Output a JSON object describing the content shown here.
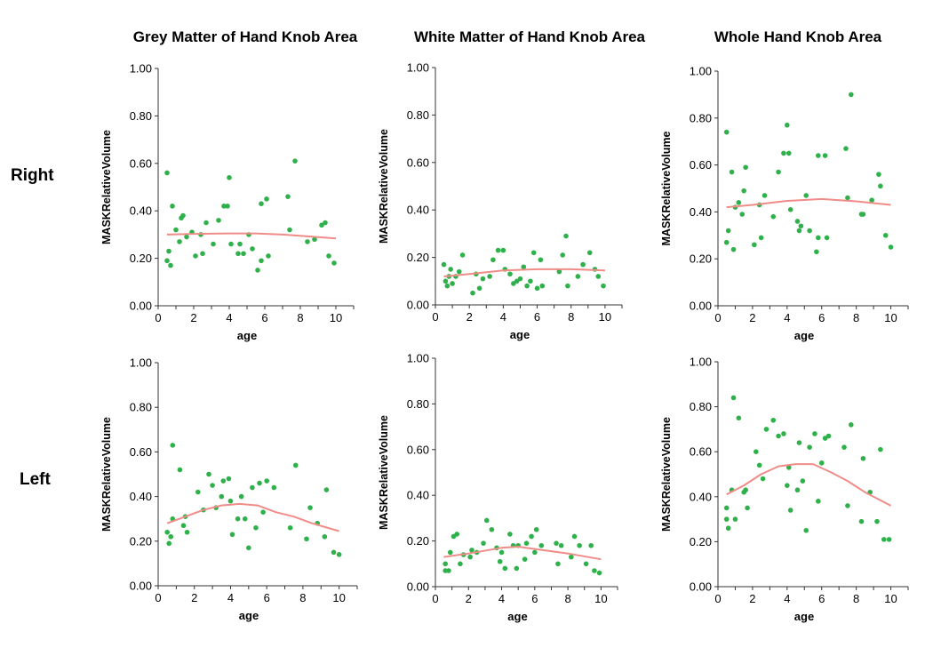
{
  "columns": [
    "Grey Matter of Hand Knob Area",
    "White Matter of Hand Knob Area",
    "Whole Hand Knob Area"
  ],
  "rows": [
    "Right",
    "Left"
  ],
  "colors": {
    "point": "#2eb14a",
    "fit": "#f08c88",
    "axis": "#333333"
  },
  "chart_data": [
    {
      "type": "scatter",
      "title": "Grey Matter of Hand Knob Area",
      "row": "Right",
      "xlabel": "age",
      "ylabel": "MASKRelativeVolume",
      "xlim": [
        0,
        11
      ],
      "ylim": [
        0,
        1
      ],
      "xticks": [
        0,
        2,
        4,
        6,
        8,
        10
      ],
      "xtick_labels": [
        "0",
        "2",
        "4",
        "6",
        "8",
        "10"
      ],
      "yticks": [
        0,
        0.2,
        0.4,
        0.6,
        0.8,
        1.0
      ],
      "ytick_labels": [
        "0.00",
        "0.20",
        "0.40",
        "0.60",
        "0.80",
        "1.00"
      ],
      "points": [
        [
          0.5,
          0.56
        ],
        [
          0.5,
          0.19
        ],
        [
          0.6,
          0.23
        ],
        [
          0.7,
          0.17
        ],
        [
          0.8,
          0.42
        ],
        [
          1.0,
          0.32
        ],
        [
          1.2,
          0.27
        ],
        [
          1.3,
          0.37
        ],
        [
          1.4,
          0.38
        ],
        [
          1.6,
          0.29
        ],
        [
          1.9,
          0.31
        ],
        [
          2.1,
          0.21
        ],
        [
          2.4,
          0.3
        ],
        [
          2.5,
          0.22
        ],
        [
          2.7,
          0.35
        ],
        [
          3.1,
          0.26
        ],
        [
          3.4,
          0.36
        ],
        [
          3.7,
          0.42
        ],
        [
          3.9,
          0.42
        ],
        [
          4.0,
          0.54
        ],
        [
          4.1,
          0.26
        ],
        [
          4.5,
          0.22
        ],
        [
          4.6,
          0.26
        ],
        [
          4.8,
          0.22
        ],
        [
          5.1,
          0.3
        ],
        [
          5.3,
          0.24
        ],
        [
          5.6,
          0.15
        ],
        [
          5.8,
          0.43
        ],
        [
          5.8,
          0.19
        ],
        [
          6.1,
          0.45
        ],
        [
          6.2,
          0.21
        ],
        [
          7.3,
          0.46
        ],
        [
          7.4,
          0.32
        ],
        [
          7.7,
          0.61
        ],
        [
          8.4,
          0.27
        ],
        [
          8.8,
          0.28
        ],
        [
          9.2,
          0.34
        ],
        [
          9.4,
          0.35
        ],
        [
          9.6,
          0.21
        ],
        [
          9.9,
          0.18
        ]
      ],
      "fit": [
        [
          0.5,
          0.3
        ],
        [
          2,
          0.303
        ],
        [
          4,
          0.305
        ],
        [
          5.5,
          0.305
        ],
        [
          7,
          0.3
        ],
        [
          8.5,
          0.292
        ],
        [
          10,
          0.284
        ]
      ]
    },
    {
      "type": "scatter",
      "title": "White Matter of Hand Knob Area",
      "row": "Right",
      "xlabel": "age",
      "ylabel": "MASKRelativeVolume",
      "xlim": [
        0,
        11
      ],
      "ylim": [
        0,
        1
      ],
      "xticks": [
        0,
        2,
        4,
        6,
        8,
        10
      ],
      "xtick_labels": [
        "0",
        "2",
        "4",
        "6",
        "8",
        "10"
      ],
      "yticks": [
        0,
        0.2,
        0.4,
        0.6,
        0.8,
        1.0
      ],
      "ytick_labels": [
        "0.00",
        "0.20",
        "0.40",
        "0.60",
        "0.80",
        "1.00"
      ],
      "points": [
        [
          0.5,
          0.17
        ],
        [
          0.6,
          0.1
        ],
        [
          0.7,
          0.08
        ],
        [
          0.8,
          0.12
        ],
        [
          0.9,
          0.15
        ],
        [
          1.0,
          0.09
        ],
        [
          1.2,
          0.12
        ],
        [
          1.4,
          0.14
        ],
        [
          1.6,
          0.21
        ],
        [
          2.2,
          0.05
        ],
        [
          2.4,
          0.13
        ],
        [
          2.6,
          0.07
        ],
        [
          2.8,
          0.11
        ],
        [
          3.2,
          0.12
        ],
        [
          3.4,
          0.19
        ],
        [
          3.7,
          0.23
        ],
        [
          4.0,
          0.23
        ],
        [
          4.1,
          0.15
        ],
        [
          4.4,
          0.13
        ],
        [
          4.6,
          0.09
        ],
        [
          4.8,
          0.1
        ],
        [
          5.0,
          0.11
        ],
        [
          5.2,
          0.16
        ],
        [
          5.4,
          0.08
        ],
        [
          5.6,
          0.1
        ],
        [
          5.8,
          0.22
        ],
        [
          6.0,
          0.07
        ],
        [
          6.2,
          0.19
        ],
        [
          6.3,
          0.08
        ],
        [
          7.3,
          0.14
        ],
        [
          7.5,
          0.21
        ],
        [
          7.7,
          0.29
        ],
        [
          7.8,
          0.08
        ],
        [
          8.4,
          0.12
        ],
        [
          8.7,
          0.17
        ],
        [
          9.1,
          0.22
        ],
        [
          9.4,
          0.15
        ],
        [
          9.6,
          0.12
        ],
        [
          9.9,
          0.08
        ]
      ],
      "fit": [
        [
          0.5,
          0.12
        ],
        [
          2,
          0.13
        ],
        [
          4,
          0.145
        ],
        [
          6,
          0.15
        ],
        [
          8,
          0.15
        ],
        [
          10,
          0.145
        ]
      ]
    },
    {
      "type": "scatter",
      "title": "Whole Hand Knob Area",
      "row": "Right",
      "xlabel": "age",
      "ylabel": "MASKRelativeVolume",
      "xlim": [
        0,
        11
      ],
      "ylim": [
        0,
        1
      ],
      "xticks": [
        0,
        2,
        4,
        6,
        8,
        10
      ],
      "xtick_labels": [
        "0",
        "2",
        "4",
        "6",
        "8",
        "10"
      ],
      "yticks": [
        0,
        0.2,
        0.4,
        0.6,
        0.8,
        1.0
      ],
      "ytick_labels": [
        "0.00",
        "0.20",
        "0.40",
        "0.60",
        "0.80",
        "1.00"
      ],
      "points": [
        [
          0.5,
          0.74
        ],
        [
          0.5,
          0.27
        ],
        [
          0.6,
          0.32
        ],
        [
          0.8,
          0.57
        ],
        [
          0.9,
          0.24
        ],
        [
          1.0,
          0.42
        ],
        [
          1.2,
          0.44
        ],
        [
          1.4,
          0.39
        ],
        [
          1.5,
          0.49
        ],
        [
          1.6,
          0.59
        ],
        [
          2.1,
          0.26
        ],
        [
          2.4,
          0.43
        ],
        [
          2.5,
          0.29
        ],
        [
          2.7,
          0.47
        ],
        [
          3.2,
          0.38
        ],
        [
          3.5,
          0.57
        ],
        [
          3.8,
          0.65
        ],
        [
          4.0,
          0.77
        ],
        [
          4.1,
          0.65
        ],
        [
          4.2,
          0.41
        ],
        [
          4.6,
          0.36
        ],
        [
          4.7,
          0.32
        ],
        [
          4.8,
          0.34
        ],
        [
          5.1,
          0.47
        ],
        [
          5.3,
          0.32
        ],
        [
          5.7,
          0.23
        ],
        [
          5.8,
          0.29
        ],
        [
          5.8,
          0.64
        ],
        [
          6.2,
          0.64
        ],
        [
          6.3,
          0.29
        ],
        [
          7.4,
          0.67
        ],
        [
          7.5,
          0.46
        ],
        [
          7.7,
          0.9
        ],
        [
          8.3,
          0.39
        ],
        [
          8.4,
          0.39
        ],
        [
          8.9,
          0.45
        ],
        [
          9.3,
          0.56
        ],
        [
          9.4,
          0.51
        ],
        [
          9.7,
          0.3
        ],
        [
          10.0,
          0.25
        ]
      ],
      "fit": [
        [
          0.5,
          0.42
        ],
        [
          2,
          0.43
        ],
        [
          4,
          0.447
        ],
        [
          6,
          0.455
        ],
        [
          8,
          0.445
        ],
        [
          10,
          0.43
        ]
      ]
    },
    {
      "type": "scatter",
      "title": "Grey Matter of Hand Knob Area",
      "row": "Left",
      "xlabel": "age",
      "ylabel": "MASKRelativeVolume",
      "xlim": [
        0,
        11
      ],
      "ylim": [
        0,
        1
      ],
      "xticks": [
        0,
        2,
        4,
        6,
        8,
        10
      ],
      "xtick_labels": [
        "0",
        "2",
        "4",
        "6",
        "8",
        "10"
      ],
      "yticks": [
        0,
        0.2,
        0.4,
        0.6,
        0.8,
        1.0
      ],
      "ytick_labels": [
        "0.00",
        "0.20",
        "0.40",
        "0.60",
        "0.80",
        "1.00"
      ],
      "points": [
        [
          0.5,
          0.24
        ],
        [
          0.6,
          0.19
        ],
        [
          0.7,
          0.22
        ],
        [
          0.8,
          0.63
        ],
        [
          0.8,
          0.3
        ],
        [
          1.2,
          0.52
        ],
        [
          1.4,
          0.27
        ],
        [
          1.5,
          0.31
        ],
        [
          1.6,
          0.24
        ],
        [
          2.2,
          0.42
        ],
        [
          2.5,
          0.34
        ],
        [
          2.8,
          0.5
        ],
        [
          3.0,
          0.45
        ],
        [
          3.2,
          0.35
        ],
        [
          3.5,
          0.4
        ],
        [
          3.6,
          0.47
        ],
        [
          3.9,
          0.48
        ],
        [
          4.0,
          0.38
        ],
        [
          4.1,
          0.23
        ],
        [
          4.4,
          0.3
        ],
        [
          4.6,
          0.4
        ],
        [
          4.8,
          0.3
        ],
        [
          5.0,
          0.17
        ],
        [
          5.2,
          0.44
        ],
        [
          5.4,
          0.26
        ],
        [
          5.6,
          0.46
        ],
        [
          5.8,
          0.33
        ],
        [
          6.0,
          0.47
        ],
        [
          6.4,
          0.44
        ],
        [
          7.3,
          0.26
        ],
        [
          7.6,
          0.54
        ],
        [
          8.2,
          0.21
        ],
        [
          8.4,
          0.35
        ],
        [
          8.8,
          0.28
        ],
        [
          9.2,
          0.22
        ],
        [
          9.3,
          0.43
        ],
        [
          9.7,
          0.15
        ],
        [
          10.0,
          0.14
        ]
      ],
      "fit": [
        [
          0.5,
          0.28
        ],
        [
          1.5,
          0.31
        ],
        [
          2.5,
          0.34
        ],
        [
          3.5,
          0.36
        ],
        [
          4.5,
          0.367
        ],
        [
          5.5,
          0.36
        ],
        [
          6.5,
          0.33
        ],
        [
          7.5,
          0.31
        ],
        [
          8.5,
          0.28
        ],
        [
          10,
          0.245
        ]
      ]
    },
    {
      "type": "scatter",
      "title": "White Matter of Hand Knob Area",
      "row": "Left",
      "xlabel": "age",
      "ylabel": "MASKRelativeVolume",
      "xlim": [
        0,
        11
      ],
      "ylim": [
        0,
        1
      ],
      "xticks": [
        0,
        2,
        4,
        6,
        8,
        10
      ],
      "xtick_labels": [
        "0",
        "2",
        "4",
        "6",
        "8",
        "10"
      ],
      "yticks": [
        0,
        0.2,
        0.4,
        0.6,
        0.8,
        1.0
      ],
      "ytick_labels": [
        "0.00",
        "0.20",
        "0.40",
        "0.60",
        "0.80",
        "1.00"
      ],
      "points": [
        [
          0.6,
          0.1
        ],
        [
          0.6,
          0.07
        ],
        [
          0.8,
          0.07
        ],
        [
          0.9,
          0.15
        ],
        [
          1.1,
          0.22
        ],
        [
          1.3,
          0.23
        ],
        [
          1.5,
          0.1
        ],
        [
          1.7,
          0.14
        ],
        [
          2.1,
          0.13
        ],
        [
          2.2,
          0.16
        ],
        [
          2.5,
          0.15
        ],
        [
          2.9,
          0.19
        ],
        [
          3.1,
          0.29
        ],
        [
          3.4,
          0.25
        ],
        [
          3.7,
          0.17
        ],
        [
          3.9,
          0.11
        ],
        [
          4.0,
          0.15
        ],
        [
          4.2,
          0.08
        ],
        [
          4.5,
          0.23
        ],
        [
          4.7,
          0.18
        ],
        [
          4.9,
          0.08
        ],
        [
          5.0,
          0.18
        ],
        [
          5.4,
          0.12
        ],
        [
          5.5,
          0.19
        ],
        [
          5.8,
          0.22
        ],
        [
          6.0,
          0.15
        ],
        [
          6.1,
          0.25
        ],
        [
          6.4,
          0.18
        ],
        [
          7.3,
          0.19
        ],
        [
          7.4,
          0.1
        ],
        [
          7.6,
          0.18
        ],
        [
          8.2,
          0.13
        ],
        [
          8.4,
          0.22
        ],
        [
          8.7,
          0.18
        ],
        [
          9.1,
          0.1
        ],
        [
          9.4,
          0.18
        ],
        [
          9.6,
          0.07
        ],
        [
          9.9,
          0.06
        ]
      ],
      "fit": [
        [
          0.5,
          0.13
        ],
        [
          2,
          0.145
        ],
        [
          4,
          0.17
        ],
        [
          5,
          0.175
        ],
        [
          6,
          0.165
        ],
        [
          8,
          0.145
        ],
        [
          10,
          0.12
        ]
      ]
    },
    {
      "type": "scatter",
      "title": "Whole Hand Knob Area",
      "row": "Left",
      "xlabel": "age",
      "ylabel": "MASKRelativeVolume",
      "xlim": [
        0,
        11
      ],
      "ylim": [
        0,
        1
      ],
      "xticks": [
        0,
        2,
        4,
        6,
        8,
        10
      ],
      "xtick_labels": [
        "0",
        "2",
        "4",
        "6",
        "8",
        "10"
      ],
      "yticks": [
        0,
        0.2,
        0.4,
        0.6,
        0.8,
        1.0
      ],
      "ytick_labels": [
        "0.00",
        "0.20",
        "0.40",
        "0.60",
        "0.80",
        "1.00"
      ],
      "points": [
        [
          0.5,
          0.35
        ],
        [
          0.5,
          0.3
        ],
        [
          0.6,
          0.26
        ],
        [
          0.8,
          0.43
        ],
        [
          0.9,
          0.84
        ],
        [
          1.0,
          0.3
        ],
        [
          1.2,
          0.75
        ],
        [
          1.5,
          0.42
        ],
        [
          1.6,
          0.43
        ],
        [
          1.7,
          0.35
        ],
        [
          2.2,
          0.6
        ],
        [
          2.4,
          0.54
        ],
        [
          2.6,
          0.48
        ],
        [
          2.8,
          0.7
        ],
        [
          3.2,
          0.74
        ],
        [
          3.5,
          0.67
        ],
        [
          3.8,
          0.68
        ],
        [
          4.0,
          0.45
        ],
        [
          4.1,
          0.53
        ],
        [
          4.2,
          0.34
        ],
        [
          4.6,
          0.43
        ],
        [
          4.7,
          0.64
        ],
        [
          4.9,
          0.47
        ],
        [
          5.1,
          0.25
        ],
        [
          5.3,
          0.62
        ],
        [
          5.6,
          0.68
        ],
        [
          5.8,
          0.38
        ],
        [
          6.0,
          0.55
        ],
        [
          6.2,
          0.66
        ],
        [
          6.4,
          0.67
        ],
        [
          7.3,
          0.62
        ],
        [
          7.5,
          0.36
        ],
        [
          7.7,
          0.72
        ],
        [
          8.3,
          0.29
        ],
        [
          8.4,
          0.57
        ],
        [
          8.8,
          0.42
        ],
        [
          9.2,
          0.29
        ],
        [
          9.4,
          0.61
        ],
        [
          9.6,
          0.21
        ],
        [
          9.9,
          0.21
        ]
      ],
      "fit": [
        [
          0.5,
          0.41
        ],
        [
          1.5,
          0.45
        ],
        [
          2.5,
          0.5
        ],
        [
          3.5,
          0.535
        ],
        [
          4.5,
          0.545
        ],
        [
          5.5,
          0.545
        ],
        [
          6.5,
          0.51
        ],
        [
          7.5,
          0.47
        ],
        [
          8.5,
          0.42
        ],
        [
          10,
          0.36
        ]
      ]
    }
  ]
}
